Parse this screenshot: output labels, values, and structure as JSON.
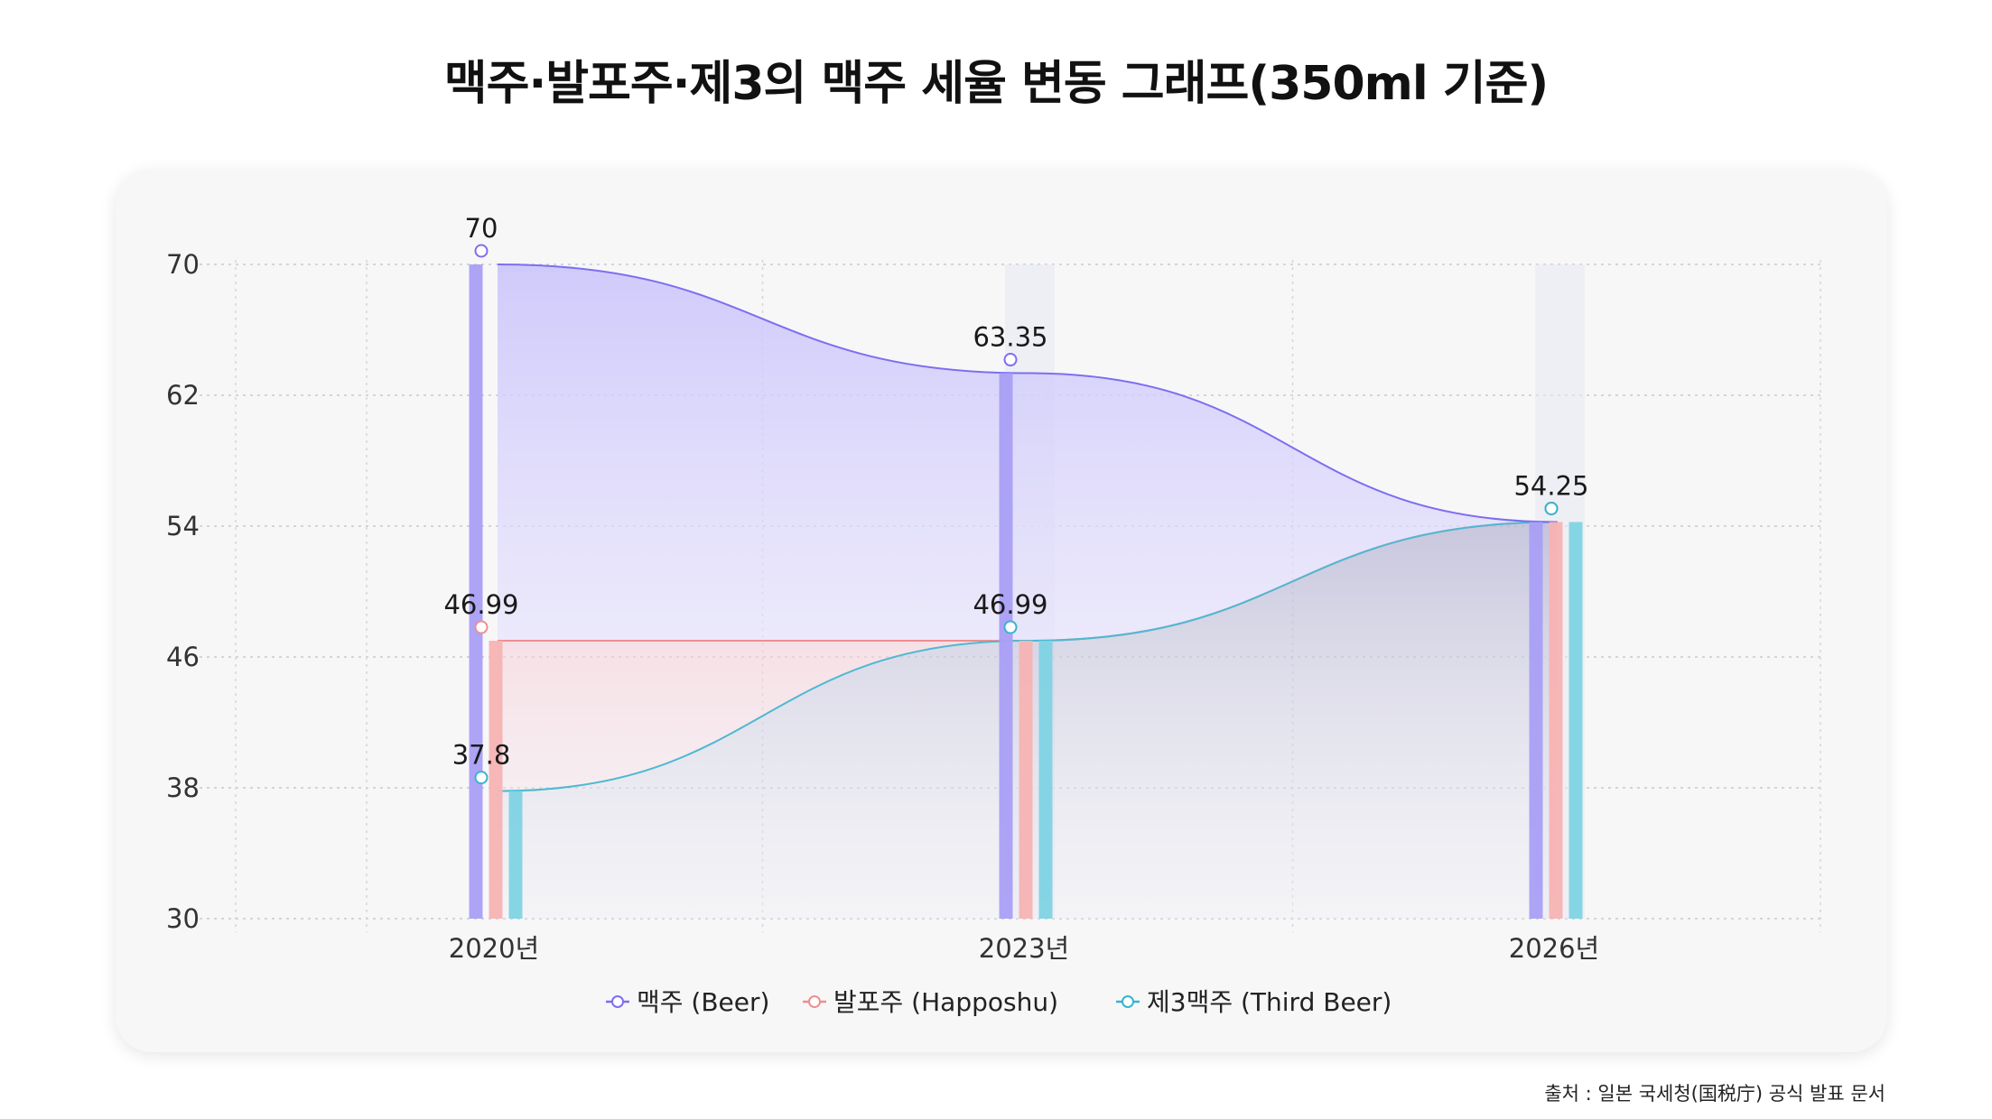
{
  "title": "맥주·발포주·제3의 맥주 세율 변동 그래프(350ml 기준)",
  "source": "출처 : 일본 국세청(国税庁) 공식 발표 문서",
  "chart_data": {
    "type": "area",
    "title": "맥주·발포주·제3의 맥주 세율 변동 그래프(350ml 기준)",
    "categories": [
      "2020년",
      "2023년",
      "2026년"
    ],
    "yticks": [
      "30",
      "38",
      "46",
      "54",
      "62",
      "70"
    ],
    "ylim": [
      30,
      70
    ],
    "grid": true,
    "legend_position": "bottom-center",
    "series": [
      {
        "name": "맥주 (Beer)",
        "values": [
          70,
          63.35,
          54.25
        ],
        "labels": [
          "70",
          "63.35",
          "54.25"
        ],
        "color": "#8b7cf0"
      },
      {
        "name": "발포주 (Happoshu)",
        "values": [
          46.99,
          46.99,
          54.25
        ],
        "labels": [
          "46.99",
          "46.99",
          ""
        ],
        "color": "#f29a9a"
      },
      {
        "name": "제3맥주 (Third Beer)",
        "values": [
          37.8,
          46.99,
          54.25
        ],
        "labels": [
          "37.8",
          "",
          ""
        ],
        "color": "#5cc9dc"
      }
    ]
  }
}
